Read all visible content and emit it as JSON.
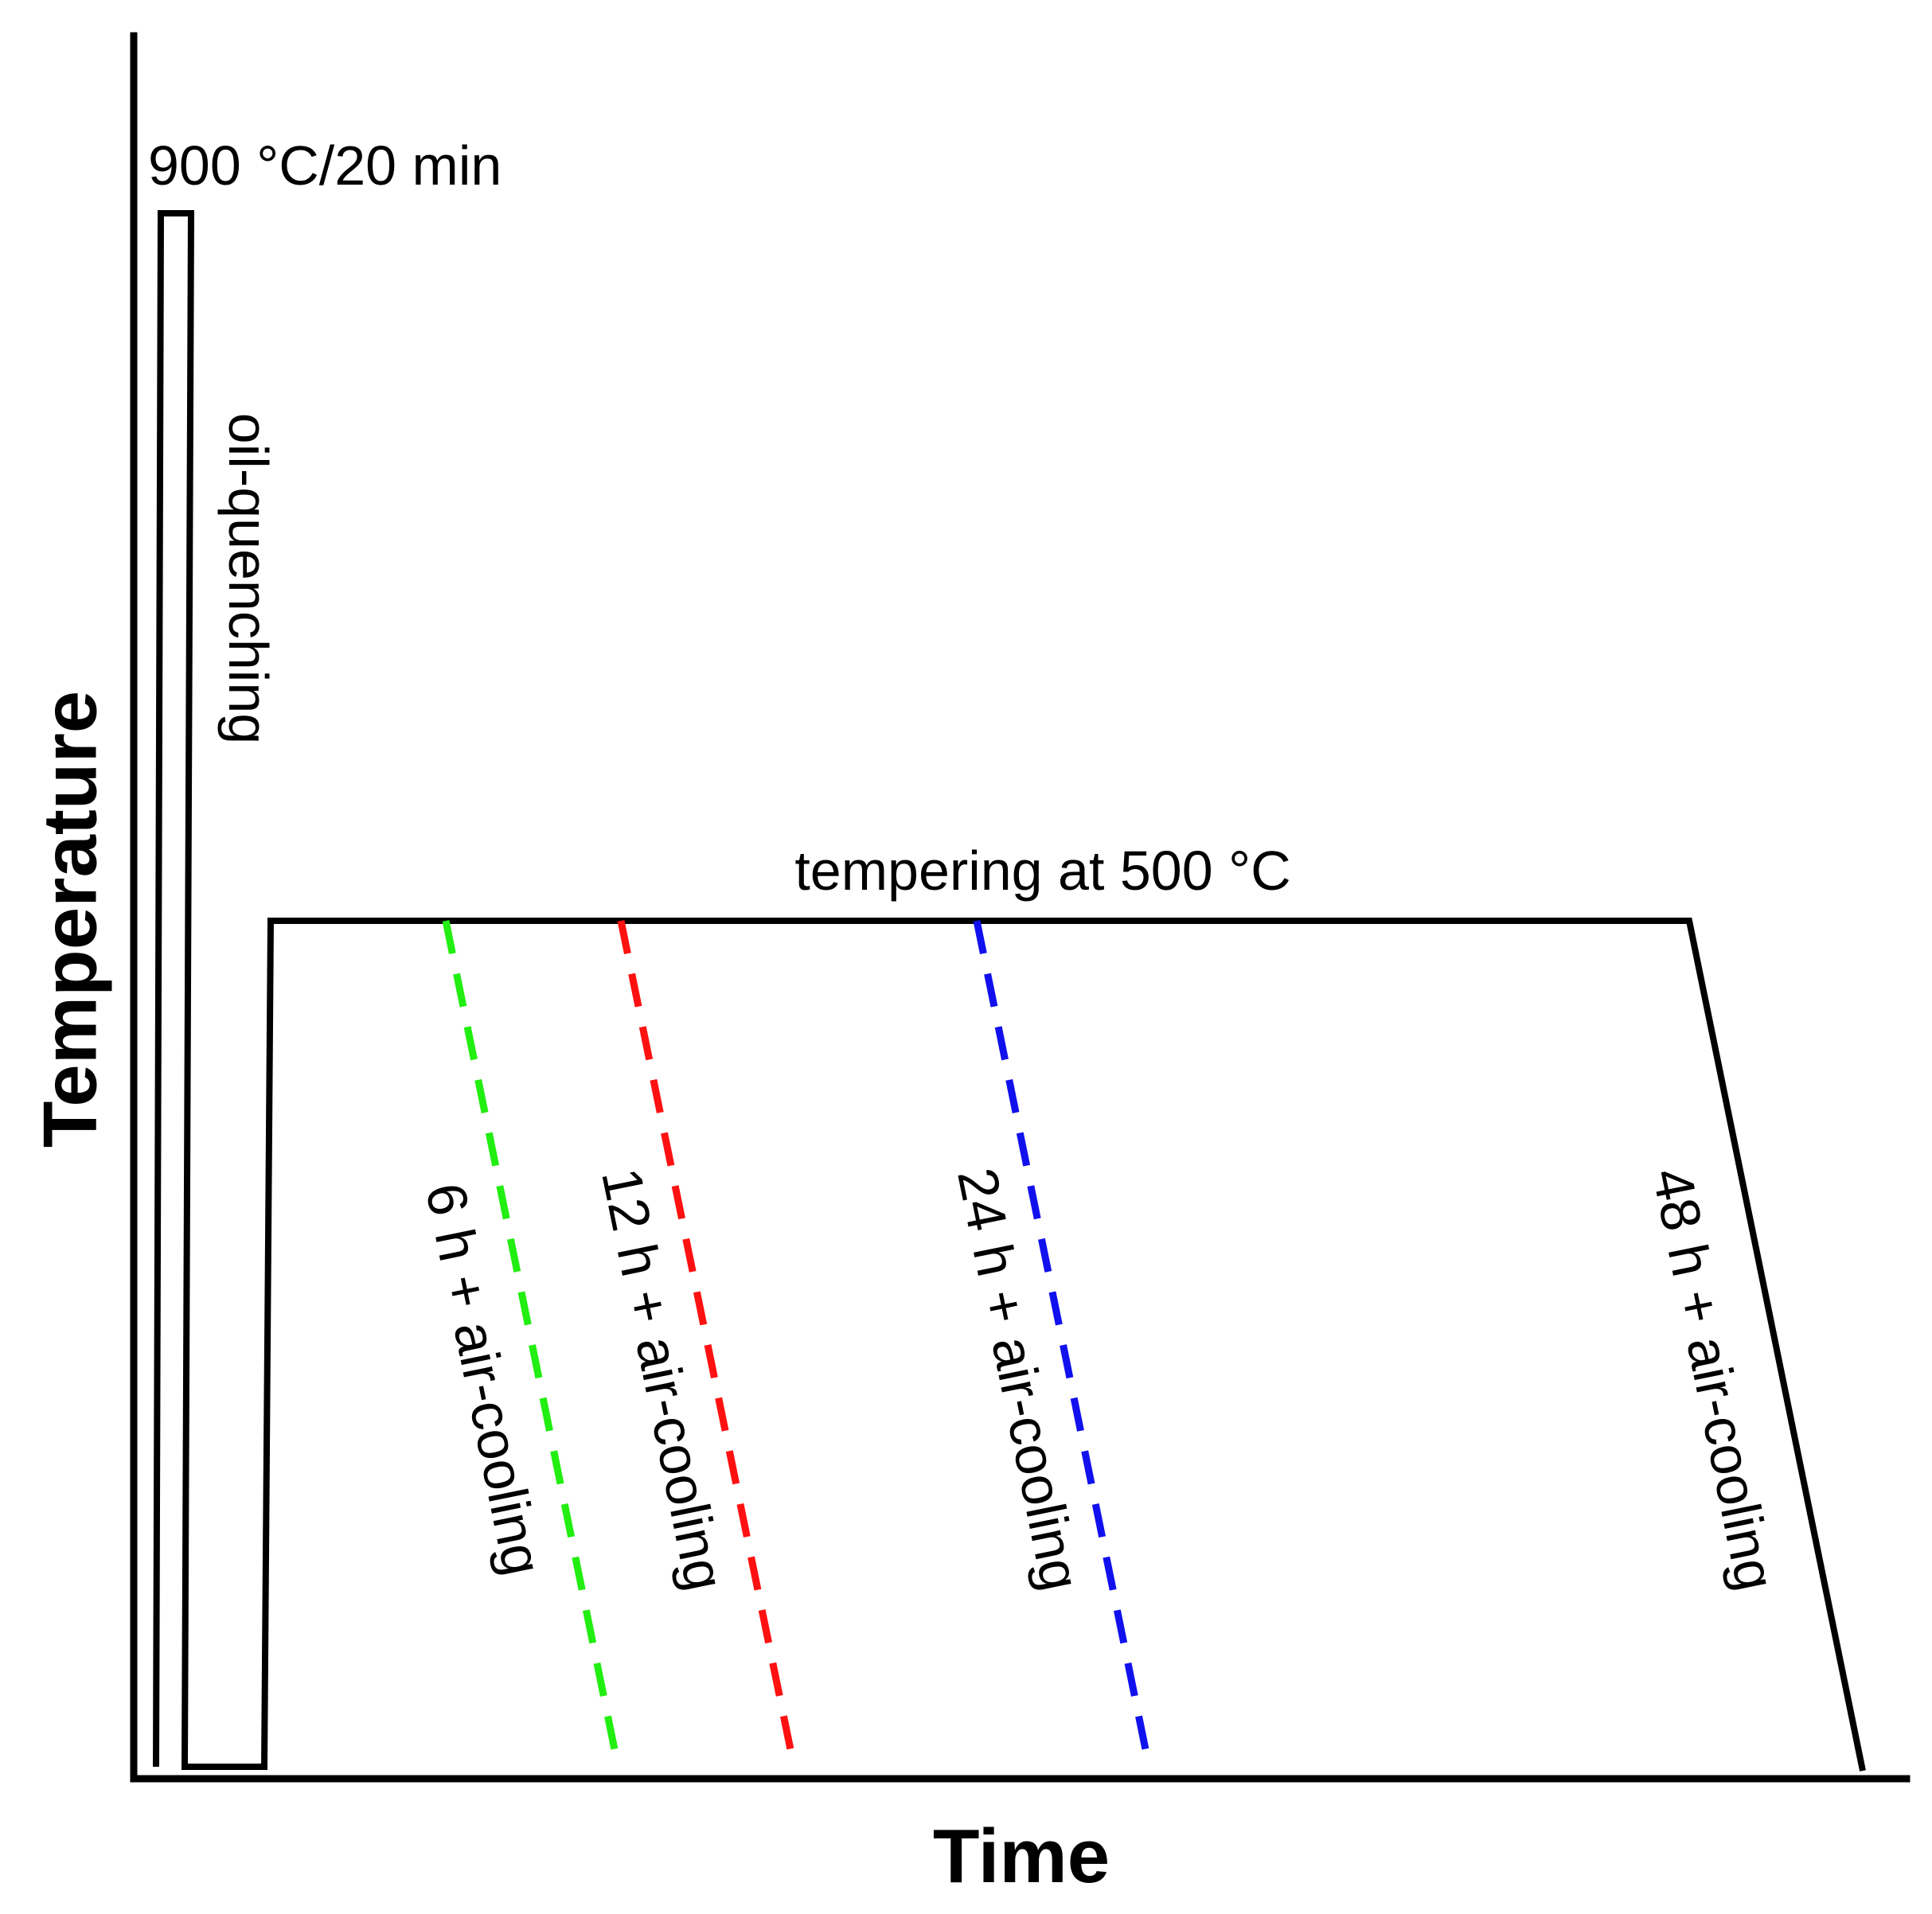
{
  "axes": {
    "y_label": "Temperature",
    "x_label": "Time"
  },
  "steps": {
    "austenitize": "900 °C/20 min",
    "quench": "oil-quenching",
    "temper": "tempering at 500 °C"
  },
  "cooling_paths": [
    {
      "label": "6 h + air-cooling",
      "color": "#22ee11"
    },
    {
      "label": "12 h + air-cooling",
      "color": "#ff1111"
    },
    {
      "label": "24 h + air-cooling",
      "color": "#1111ee"
    },
    {
      "label": "48 h + air-cooling",
      "color": "#000000"
    }
  ]
}
